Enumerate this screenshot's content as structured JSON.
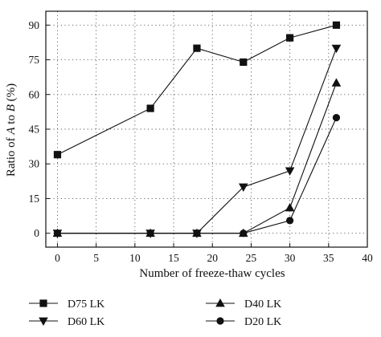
{
  "chart_data": {
    "type": "line",
    "xlabel": "Number of freeze-thaw cycles",
    "ylabel": {
      "prefix": "Ratio of ",
      "a": "A",
      "mid": " to ",
      "b": "B",
      "suffix": " (%)"
    },
    "xlim": [
      -1.5,
      40
    ],
    "ylim": [
      -6,
      96
    ],
    "xticks": [
      0,
      5,
      10,
      15,
      20,
      25,
      30,
      35,
      40
    ],
    "yticks": [
      0,
      15,
      30,
      45,
      60,
      75,
      90
    ],
    "grid": true,
    "legend_position": "bottom",
    "series": [
      {
        "name": "D75 LK",
        "marker": "square",
        "x": [
          0,
          12,
          18,
          24,
          30,
          36
        ],
        "y": [
          34,
          54,
          80,
          74,
          84.5,
          90
        ]
      },
      {
        "name": "D60 LK",
        "marker": "triangle-down",
        "x": [
          0,
          12,
          18,
          24,
          30,
          36
        ],
        "y": [
          0,
          0,
          0,
          20,
          27,
          80
        ]
      },
      {
        "name": "D40 LK",
        "marker": "triangle-up",
        "x": [
          0,
          12,
          18,
          24,
          30,
          36
        ],
        "y": [
          0,
          0,
          0,
          0,
          11,
          65
        ]
      },
      {
        "name": "D20 LK",
        "marker": "circle",
        "x": [
          0,
          12,
          18,
          24,
          30,
          36
        ],
        "y": [
          0,
          0,
          0,
          0,
          5.5,
          50
        ]
      }
    ]
  }
}
